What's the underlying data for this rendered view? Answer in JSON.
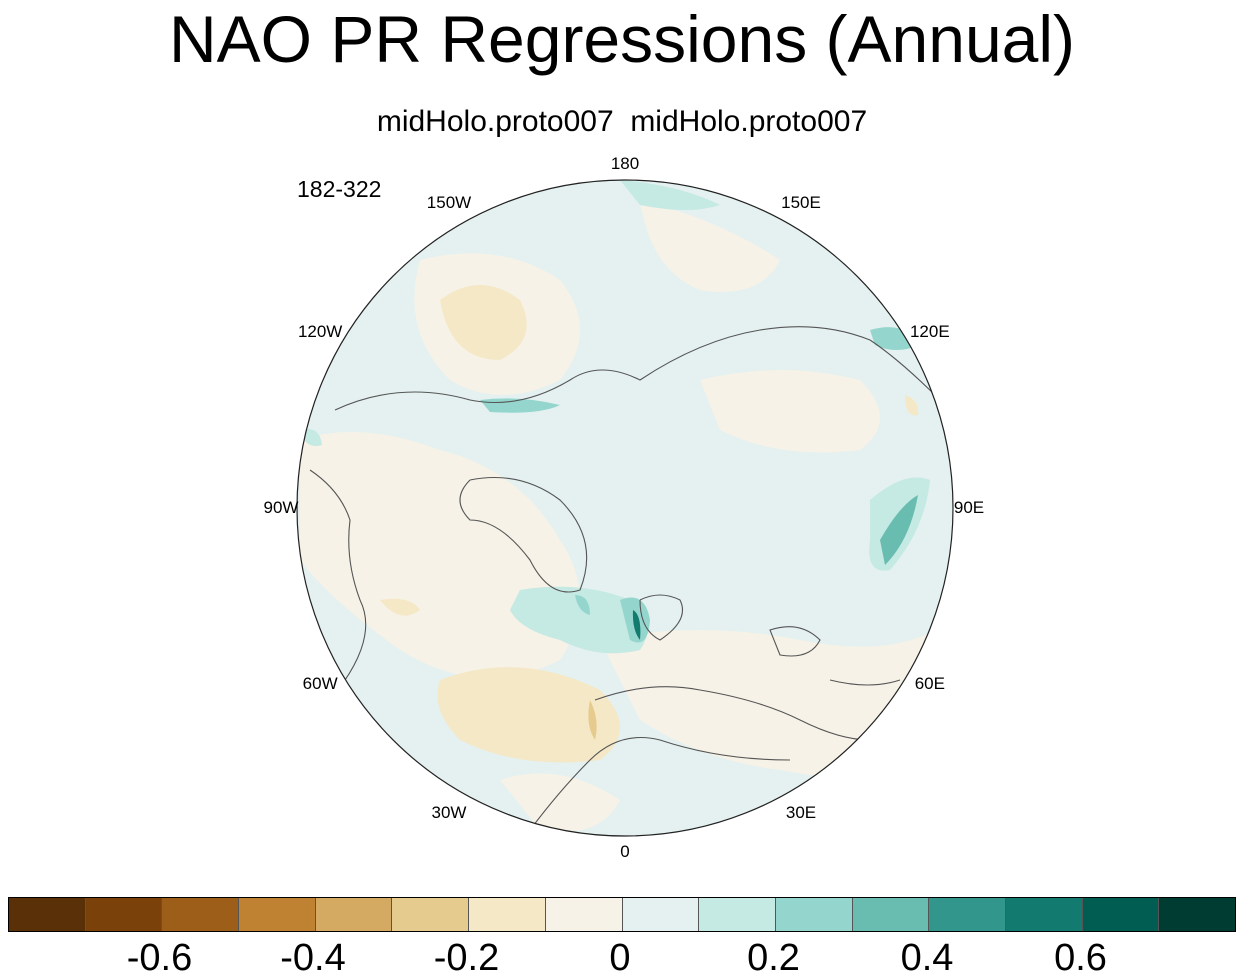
{
  "title": "NAO PR Regressions (Annual)",
  "subtitle": "midHolo.proto007  midHolo.proto007",
  "period": "182-322",
  "longitude_labels": [
    "180",
    "150E",
    "120E",
    "90E",
    "60E",
    "30E",
    "0",
    "30W",
    "60W",
    "90W",
    "120W",
    "150W"
  ],
  "colorbar": {
    "colors": [
      "#5a3008",
      "#7a420a",
      "#9c5e18",
      "#be8232",
      "#d4aa62",
      "#e6cb8e",
      "#f5e8c6",
      "#f6f2e7",
      "#e4f1f0",
      "#c5e9e3",
      "#94d6cd",
      "#69bcb0",
      "#33968c",
      "#127a6e",
      "#015c51",
      "#013c33"
    ],
    "tick_labels": [
      "-0.6",
      "-0.4",
      "-0.2",
      "0",
      "0.2",
      "0.4",
      "0.6"
    ]
  },
  "colors": {
    "ocean_base": "#e4f1f0",
    "land_outline": "#555555",
    "map_border": "#222222"
  }
}
